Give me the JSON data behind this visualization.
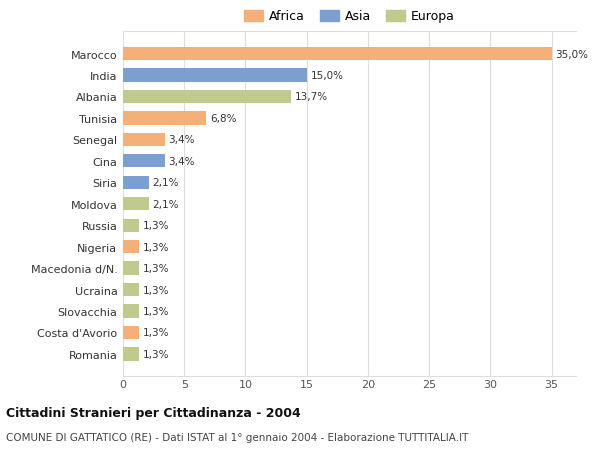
{
  "categories": [
    "Marocco",
    "India",
    "Albania",
    "Tunisia",
    "Senegal",
    "Cina",
    "Siria",
    "Moldova",
    "Russia",
    "Nigeria",
    "Macedonia d/N.",
    "Ucraina",
    "Slovacchia",
    "Costa d'Avorio",
    "Romania"
  ],
  "values": [
    35.0,
    15.0,
    13.7,
    6.8,
    3.4,
    3.4,
    2.1,
    2.1,
    1.3,
    1.3,
    1.3,
    1.3,
    1.3,
    1.3,
    1.3
  ],
  "labels": [
    "35,0%",
    "15,0%",
    "13,7%",
    "6,8%",
    "3,4%",
    "3,4%",
    "2,1%",
    "2,1%",
    "1,3%",
    "1,3%",
    "1,3%",
    "1,3%",
    "1,3%",
    "1,3%",
    "1,3%"
  ],
  "continents": [
    "Africa",
    "Asia",
    "Europa",
    "Africa",
    "Africa",
    "Asia",
    "Asia",
    "Europa",
    "Europa",
    "Africa",
    "Europa",
    "Europa",
    "Europa",
    "Africa",
    "Europa"
  ],
  "africa_color": "#F5B07A",
  "asia_color": "#7B9FD0",
  "europa_color": "#BFCA8C",
  "title": "Cittadini Stranieri per Cittadinanza - 2004",
  "subtitle": "COMUNE DI GATTATICO (RE) - Dati ISTAT al 1° gennaio 2004 - Elaborazione TUTTITALIA.IT",
  "xlim": [
    0,
    37
  ],
  "xticks": [
    0,
    5,
    10,
    15,
    20,
    25,
    30,
    35
  ],
  "bg_color": "#FFFFFF",
  "grid_color": "#DDDDDD"
}
